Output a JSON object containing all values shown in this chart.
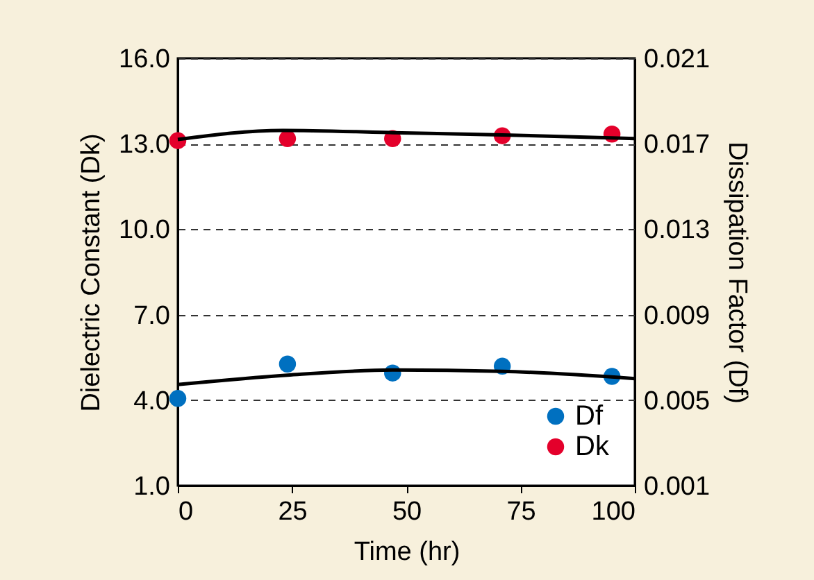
{
  "chart_data": {
    "type": "scatter",
    "xlabel": "Time (hr)",
    "ylabel": "Dielectric Constant (Dk)",
    "y2label": "Dissipation Factor (Df)",
    "xlim": [
      0,
      100
    ],
    "xticks": [
      0,
      25,
      50,
      75,
      100
    ],
    "ylim": [
      1,
      16
    ],
    "yticks": [
      {
        "value": 1,
        "label": "1.0"
      },
      {
        "value": 4,
        "label": "4.0"
      },
      {
        "value": 7,
        "label": "7.0"
      },
      {
        "value": 10,
        "label": "10.0"
      },
      {
        "value": 13,
        "label": "13.0"
      },
      {
        "value": 16,
        "label": "16.0"
      }
    ],
    "y2lim": [
      0.001,
      0.021
    ],
    "y2ticks": [
      0.001,
      0.005,
      0.009,
      0.013,
      0.017,
      0.021
    ],
    "grid": "y",
    "legend": "bottom right",
    "marker": "circle",
    "series": [
      {
        "name": "Df",
        "axis": "y2",
        "color": "#0070c0",
        "x": [
          0,
          24,
          47,
          71,
          95
        ],
        "values": [
          0.00508,
          0.00669,
          0.00627,
          0.00659,
          0.00611
        ]
      },
      {
        "name": "Dk",
        "axis": "y",
        "color": "#e4002b",
        "x": [
          0,
          24,
          47,
          71,
          95
        ],
        "values": [
          13.11,
          13.18,
          13.18,
          13.28,
          13.34
        ]
      },
      {
        "type": "line",
        "axis": "y",
        "color": "#000000",
        "line_style": "solid",
        "marker": "none",
        "x": [
          0,
          23,
          47,
          71,
          100
        ],
        "values": [
          13.15,
          13.47,
          13.39,
          13.31,
          13.18
        ]
      },
      {
        "type": "line",
        "axis": "y2",
        "color": "#000000",
        "line_style": "solid",
        "marker": "none",
        "x": [
          0,
          24,
          47,
          71,
          100
        ],
        "values": [
          0.00573,
          0.00617,
          0.00641,
          0.00635,
          0.00601
        ]
      }
    ]
  }
}
